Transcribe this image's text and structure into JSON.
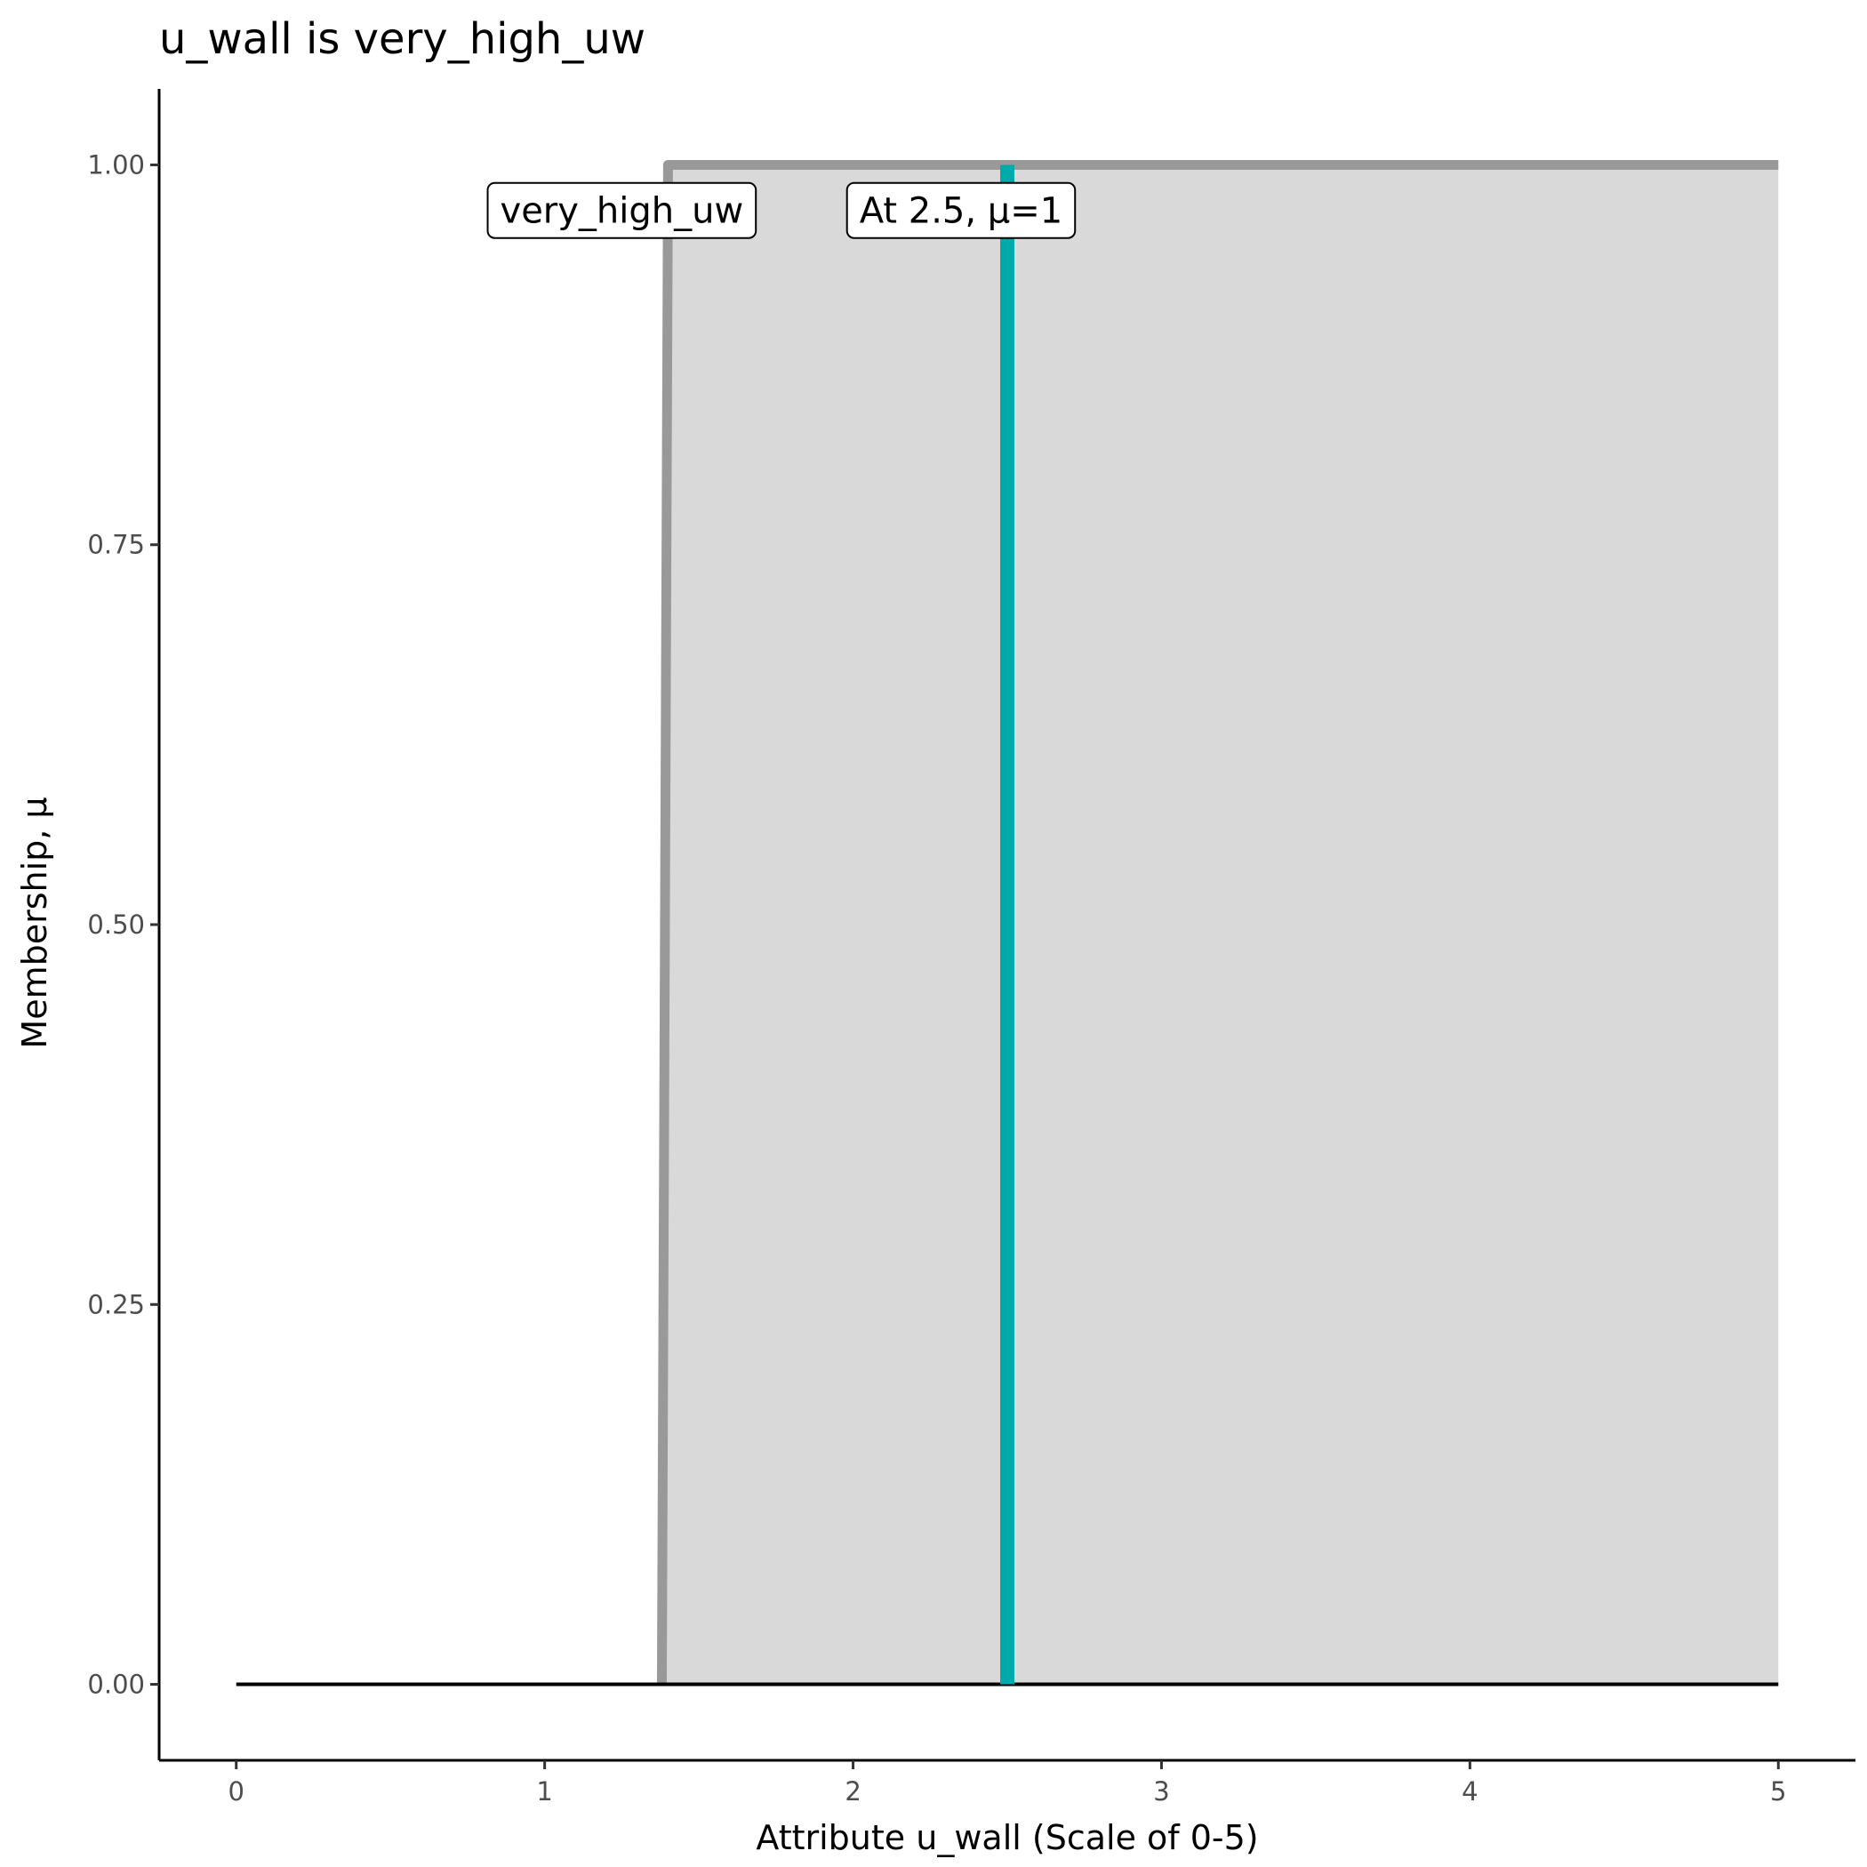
{
  "chart_data": {
    "type": "area",
    "title": "u_wall is very_high_uw",
    "xlabel": "Attribute u_wall (Scale of 0-5)",
    "ylabel": "Membership, μ",
    "xlim": [
      -0.25,
      5.25
    ],
    "ylim": [
      -0.05,
      1.05
    ],
    "x_ticks": [
      "0",
      "1",
      "2",
      "3",
      "4",
      "5"
    ],
    "x_tick_values": [
      0,
      1,
      2,
      3,
      4,
      5
    ],
    "y_ticks": [
      "0.00",
      "0.25",
      "0.50",
      "0.75",
      "1.00"
    ],
    "y_tick_values": [
      0,
      0.25,
      0.5,
      0.75,
      1
    ],
    "grid": false,
    "membership": {
      "x": [
        1.38,
        1.4,
        5.0
      ],
      "y": [
        0,
        1,
        1
      ],
      "line_color": "#999999",
      "fill_color": "#d9d9d9"
    },
    "baseline": {
      "x": [
        0,
        5
      ],
      "y": [
        0,
        0
      ],
      "color": "#000000"
    },
    "marker_line": {
      "x": 2.5,
      "y": [
        0,
        1
      ],
      "color": "#00aaaa"
    },
    "annotations": [
      {
        "text": "very_high_uw",
        "x": 1.25,
        "y": 0.97
      },
      {
        "text": "At 2.5, μ=1",
        "x": 2.35,
        "y": 0.97
      }
    ]
  }
}
